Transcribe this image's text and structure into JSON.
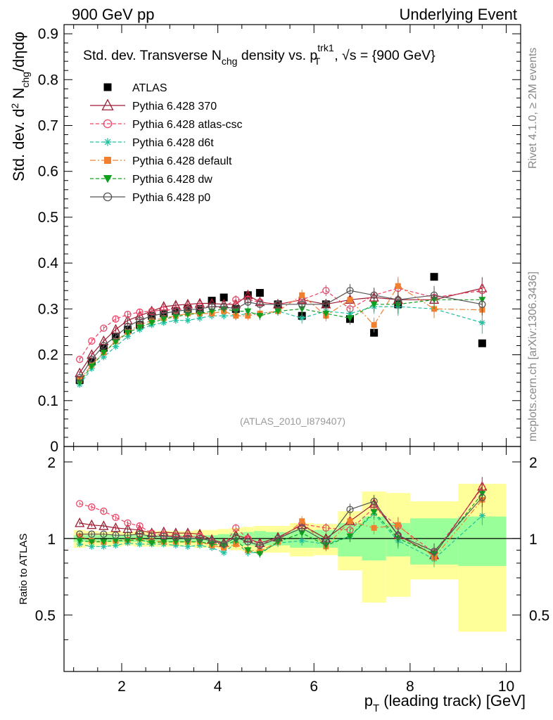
{
  "header": {
    "left": "900 GeV pp",
    "right": "Underlying Event"
  },
  "side": {
    "rivet": "Rivet 4.1.0, ≥ 2M events",
    "mcplots": "mcplots.cern.ch [arXiv:1306.3436]"
  },
  "analysis_tag": "(ATLAS_2010_I879407)",
  "title": {
    "pre": "Std. dev. Transverse N",
    "chg": "chg",
    "mid": " density vs. p",
    "sup": "trk1",
    "sub": "T",
    "post": ", √s = {900 GeV}"
  },
  "ylabel": {
    "a": "Std. dev. d",
    "b": "2",
    "c": " N",
    "d": "chg",
    "e": "/dηdφ"
  },
  "xlabel": {
    "a": "p",
    "b": "T",
    "c": " (leading track) [GeV]"
  },
  "ratio_ylabel": "Ratio to ATLAS",
  "colors": {
    "atlas": "#000000",
    "p370": "#9b1b30",
    "atlascsc": "#ee4466",
    "d6t": "#22c0a0",
    "default": "#f08030",
    "dw": "#10a020",
    "p0": "#555555",
    "band_green": "#99ff99",
    "band_yellow": "#ffff99"
  },
  "chart_data": [
    {
      "type": "scatter",
      "title": "Std. dev. Transverse Nchg density vs. pT trk1, √s = {900 GeV}",
      "xlabel": "pT (leading track) [GeV]",
      "ylabel": "Std. dev. d2 Nchg/dηdφ",
      "xlim": [
        0.8,
        10.3
      ],
      "ylim": [
        0,
        0.92
      ],
      "yticks": [
        0,
        0.1,
        0.2,
        0.3,
        0.4,
        0.5,
        0.6,
        0.7,
        0.8,
        0.9
      ],
      "ytick_labels": [
        "0",
        "0.1",
        "0.2",
        "0.3",
        "0.4",
        "0.5",
        "0.6",
        "0.7",
        "0.8",
        "0.9"
      ],
      "x": [
        1.125,
        1.375,
        1.625,
        1.875,
        2.125,
        2.375,
        2.625,
        2.875,
        3.125,
        3.375,
        3.625,
        3.875,
        4.125,
        4.375,
        4.625,
        4.875,
        5.25,
        5.75,
        6.25,
        6.75,
        7.25,
        7.75,
        8.5,
        9.5
      ],
      "legend": [
        "ATLAS",
        "Pythia 6.428 370",
        "Pythia 6.428 atlas-csc",
        "Pythia 6.428 d6t",
        "Pythia 6.428 default",
        "Pythia 6.428 dw",
        "Pythia 6.428 p0"
      ],
      "series": [
        {
          "name": "ATLAS",
          "values": [
            0.145,
            0.185,
            0.215,
            0.24,
            0.255,
            0.265,
            0.285,
            0.29,
            0.295,
            0.3,
            0.3,
            0.318,
            0.325,
            0.3,
            0.33,
            0.335,
            0.31,
            0.285,
            0.31,
            0.278,
            0.248,
            0.31,
            0.37,
            0.225
          ]
        },
        {
          "name": "Pythia 6.428 370",
          "values": [
            0.16,
            0.2,
            0.23,
            0.255,
            0.275,
            0.285,
            0.295,
            0.305,
            0.308,
            0.31,
            0.312,
            0.312,
            0.31,
            0.31,
            0.33,
            0.315,
            0.31,
            0.32,
            0.31,
            0.32,
            0.325,
            0.32,
            0.32,
            0.345
          ]
        },
        {
          "name": "Pythia 6.428 atlas-csc",
          "values": [
            0.19,
            0.23,
            0.258,
            0.278,
            0.288,
            0.293,
            0.295,
            0.298,
            0.298,
            0.3,
            0.305,
            0.305,
            0.305,
            0.32,
            0.32,
            0.315,
            0.31,
            0.32,
            0.34,
            0.3,
            0.33,
            0.345,
            0.325,
            0.34
          ]
        },
        {
          "name": "Pythia 6.428 d6t",
          "values": [
            0.135,
            0.17,
            0.195,
            0.218,
            0.24,
            0.255,
            0.265,
            0.27,
            0.275,
            0.275,
            0.28,
            0.285,
            0.285,
            0.285,
            0.29,
            0.29,
            0.295,
            0.28,
            0.295,
            0.29,
            0.305,
            0.305,
            0.3,
            0.27
          ]
        },
        {
          "name": "Pythia 6.428 default",
          "values": [
            0.145,
            0.178,
            0.205,
            0.23,
            0.25,
            0.265,
            0.275,
            0.28,
            0.285,
            0.29,
            0.29,
            0.29,
            0.295,
            0.285,
            0.285,
            0.29,
            0.295,
            0.33,
            0.285,
            0.32,
            0.265,
            0.35,
            0.3,
            0.298
          ]
        },
        {
          "name": "Pythia 6.428 dw",
          "values": [
            0.14,
            0.175,
            0.205,
            0.228,
            0.248,
            0.26,
            0.27,
            0.278,
            0.283,
            0.288,
            0.29,
            0.295,
            0.3,
            0.295,
            0.295,
            0.285,
            0.295,
            0.3,
            0.29,
            0.28,
            0.31,
            0.31,
            0.32,
            0.32
          ]
        },
        {
          "name": "Pythia 6.428 p0",
          "values": [
            0.15,
            0.19,
            0.22,
            0.24,
            0.262,
            0.275,
            0.285,
            0.29,
            0.295,
            0.298,
            0.3,
            0.305,
            0.305,
            0.3,
            0.315,
            0.31,
            0.31,
            0.31,
            0.31,
            0.34,
            0.33,
            0.32,
            0.33,
            0.31
          ]
        }
      ],
      "yerr": [
        0.005,
        0.006,
        0.006,
        0.007,
        0.007,
        0.008,
        0.008,
        0.008,
        0.009,
        0.009,
        0.01,
        0.01,
        0.01,
        0.012,
        0.012,
        0.012,
        0.012,
        0.015,
        0.015,
        0.018,
        0.02,
        0.025,
        0.025,
        0.03
      ]
    },
    {
      "type": "scatter",
      "ylabel": "Ratio to ATLAS",
      "xlim": [
        0.8,
        10.3
      ],
      "ylim": [
        0.3,
        2.3
      ],
      "yticks": [
        0.5,
        1,
        2
      ],
      "ytick_labels": [
        "0.5",
        "1",
        "2"
      ],
      "xticks": [
        2,
        4,
        6,
        8,
        10
      ],
      "xtick_labels": [
        "2",
        "4",
        "6",
        "8",
        "10"
      ],
      "bins": [
        [
          1.0,
          1.25
        ],
        [
          1.25,
          1.5
        ],
        [
          1.5,
          1.75
        ],
        [
          1.75,
          2.0
        ],
        [
          2.0,
          2.25
        ],
        [
          2.25,
          2.5
        ],
        [
          2.5,
          2.75
        ],
        [
          2.75,
          3.0
        ],
        [
          3.0,
          3.25
        ],
        [
          3.25,
          3.5
        ],
        [
          3.5,
          3.75
        ],
        [
          3.75,
          4.0
        ],
        [
          4.0,
          4.25
        ],
        [
          4.25,
          4.5
        ],
        [
          4.5,
          4.75
        ],
        [
          4.75,
          5.0
        ],
        [
          5.0,
          5.5
        ],
        [
          5.5,
          6.0
        ],
        [
          6.0,
          6.5
        ],
        [
          6.5,
          7.0
        ],
        [
          7.0,
          7.5
        ],
        [
          7.5,
          8.0
        ],
        [
          8.0,
          9.0
        ],
        [
          9.0,
          10.0
        ]
      ],
      "band_green": [
        [
          0.97,
          1.03
        ],
        [
          0.97,
          1.03
        ],
        [
          0.97,
          1.03
        ],
        [
          0.97,
          1.03
        ],
        [
          0.97,
          1.03
        ],
        [
          0.97,
          1.03
        ],
        [
          0.97,
          1.03
        ],
        [
          0.97,
          1.03
        ],
        [
          0.97,
          1.03
        ],
        [
          0.97,
          1.03
        ],
        [
          0.97,
          1.03
        ],
        [
          0.97,
          1.03
        ],
        [
          0.96,
          1.04
        ],
        [
          0.95,
          1.05
        ],
        [
          0.94,
          1.06
        ],
        [
          0.93,
          1.07
        ],
        [
          0.94,
          1.06
        ],
        [
          0.92,
          1.08
        ],
        [
          0.92,
          1.08
        ],
        [
          0.85,
          1.15
        ],
        [
          0.82,
          1.22
        ],
        [
          0.85,
          1.15
        ],
        [
          0.79,
          1.2
        ],
        [
          0.78,
          1.22
        ]
      ],
      "band_yellow": [
        [
          0.92,
          1.08
        ],
        [
          0.93,
          1.07
        ],
        [
          0.94,
          1.06
        ],
        [
          0.93,
          1.07
        ],
        [
          0.94,
          1.06
        ],
        [
          0.93,
          1.07
        ],
        [
          0.93,
          1.07
        ],
        [
          0.93,
          1.07
        ],
        [
          0.93,
          1.07
        ],
        [
          0.93,
          1.07
        ],
        [
          0.92,
          1.08
        ],
        [
          0.92,
          1.08
        ],
        [
          0.91,
          1.09
        ],
        [
          0.9,
          1.1
        ],
        [
          0.89,
          1.11
        ],
        [
          0.88,
          1.12
        ],
        [
          0.88,
          1.12
        ],
        [
          0.85,
          1.15
        ],
        [
          0.86,
          1.14
        ],
        [
          0.75,
          1.28
        ],
        [
          0.56,
          1.53
        ],
        [
          0.59,
          1.51
        ],
        [
          0.69,
          1.4
        ],
        [
          0.43,
          1.64
        ]
      ],
      "series": [
        {
          "name": "Pythia 6.428 370",
          "values": [
            1.15,
            1.13,
            1.12,
            1.1,
            1.09,
            1.08,
            1.05,
            1.06,
            1.05,
            1.05,
            1.04,
            0.99,
            0.96,
            1.03,
            1.0,
            0.96,
            1.01,
            1.13,
            1.0,
            1.17,
            1.37,
            1.03,
            0.86,
            1.6
          ]
        },
        {
          "name": "Pythia 6.428 atlas-csc",
          "values": [
            1.37,
            1.33,
            1.28,
            1.21,
            1.15,
            1.12,
            1.05,
            1.03,
            1.02,
            1.01,
            1.02,
            0.97,
            0.94,
            1.1,
            1.0,
            0.95,
            1.0,
            1.14,
            1.1,
            1.08,
            1.32,
            1.12,
            0.88,
            1.58
          ]
        },
        {
          "name": "Pythia 6.428 d6t",
          "values": [
            0.95,
            0.93,
            0.93,
            0.94,
            0.96,
            0.95,
            0.95,
            0.95,
            0.94,
            0.93,
            0.94,
            0.92,
            0.88,
            0.96,
            0.88,
            0.88,
            0.96,
            0.98,
            0.95,
            1.02,
            1.25,
            0.98,
            0.83,
            1.23
          ]
        },
        {
          "name": "Pythia 6.428 default",
          "values": [
            1.02,
            0.98,
            0.97,
            0.98,
            0.99,
            1.0,
            0.98,
            0.97,
            0.97,
            0.97,
            0.97,
            0.94,
            0.92,
            0.95,
            0.9,
            0.89,
            0.97,
            1.17,
            0.93,
            1.17,
            1.1,
            1.13,
            0.84,
            1.42
          ]
        },
        {
          "name": "Pythia 6.428 dw",
          "values": [
            0.98,
            0.97,
            0.97,
            0.98,
            0.98,
            0.99,
            0.96,
            0.97,
            0.97,
            0.97,
            0.97,
            0.95,
            0.94,
            0.98,
            0.9,
            0.87,
            0.97,
            1.05,
            0.94,
            1.02,
            1.27,
            1.0,
            0.87,
            1.5
          ]
        },
        {
          "name": "Pythia 6.428 p0",
          "values": [
            1.04,
            1.04,
            1.04,
            1.03,
            1.03,
            1.04,
            1.02,
            1.02,
            1.01,
            1.0,
            1.0,
            0.98,
            0.95,
            1.01,
            0.97,
            0.94,
            1.0,
            1.1,
            0.97,
            1.3,
            1.4,
            1.03,
            0.89,
            1.45
          ]
        }
      ]
    }
  ]
}
